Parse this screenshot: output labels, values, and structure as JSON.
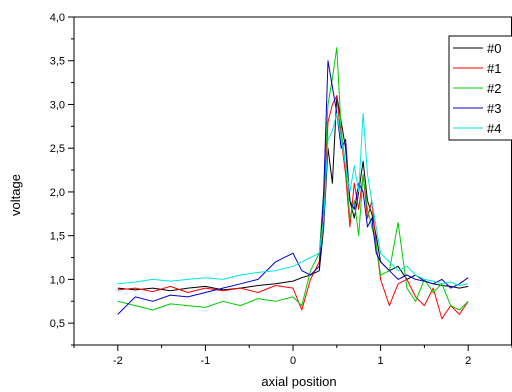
{
  "chart_data": {
    "type": "line",
    "xlabel": "axial position",
    "ylabel": "voltage",
    "xlim": [
      -2.5,
      2.5
    ],
    "ylim": [
      0.25,
      4.0
    ],
    "x_ticks": [
      -2,
      -1,
      0,
      1,
      2
    ],
    "x_tick_labels": [
      "-2",
      "-1",
      "0",
      "1",
      "2"
    ],
    "y_ticks": [
      0.5,
      1.0,
      1.5,
      2.0,
      2.5,
      3.0,
      3.5,
      4.0
    ],
    "y_tick_labels": [
      "0,5",
      "1,0",
      "1,5",
      "2,0",
      "2,5",
      "3,0",
      "3,5",
      "4,0"
    ],
    "legend_position": "top-right",
    "grid": false,
    "series": [
      {
        "name": "#0",
        "color": "#000000",
        "x": [
          -2.0,
          -1.8,
          -1.6,
          -1.4,
          -1.2,
          -1.0,
          -0.8,
          -0.6,
          -0.4,
          -0.2,
          0.0,
          0.1,
          0.2,
          0.3,
          0.35,
          0.4,
          0.45,
          0.5,
          0.55,
          0.6,
          0.65,
          0.7,
          0.75,
          0.8,
          0.85,
          0.9,
          0.95,
          1.0,
          1.1,
          1.2,
          1.3,
          1.4,
          1.5,
          1.6,
          1.7,
          1.8,
          1.9,
          2.0
        ],
        "y": [
          0.9,
          0.88,
          0.9,
          0.87,
          0.9,
          0.92,
          0.88,
          0.9,
          0.93,
          0.95,
          0.98,
          1.02,
          1.05,
          1.1,
          1.6,
          2.5,
          2.1,
          3.1,
          2.8,
          2.5,
          1.9,
          1.7,
          2.0,
          2.35,
          1.9,
          1.75,
          1.5,
          1.2,
          1.1,
          1.15,
          1.0,
          1.05,
          0.98,
          0.95,
          0.93,
          0.92,
          0.9,
          0.92
        ]
      },
      {
        "name": "#1",
        "color": "#ff0000",
        "x": [
          -2.0,
          -1.8,
          -1.6,
          -1.4,
          -1.2,
          -1.0,
          -0.8,
          -0.6,
          -0.4,
          -0.2,
          0.0,
          0.1,
          0.2,
          0.3,
          0.35,
          0.4,
          0.45,
          0.5,
          0.55,
          0.6,
          0.65,
          0.7,
          0.75,
          0.8,
          0.85,
          0.9,
          0.95,
          1.0,
          1.1,
          1.2,
          1.3,
          1.4,
          1.5,
          1.6,
          1.7,
          1.8,
          1.9,
          2.0
        ],
        "y": [
          0.88,
          0.9,
          0.86,
          0.92,
          0.85,
          0.9,
          0.87,
          0.9,
          0.85,
          0.93,
          0.9,
          0.65,
          1.0,
          1.2,
          1.8,
          2.8,
          3.0,
          3.1,
          2.6,
          2.2,
          1.6,
          2.1,
          1.8,
          2.2,
          1.7,
          1.9,
          1.4,
          1.0,
          0.7,
          0.95,
          1.0,
          0.8,
          0.7,
          0.9,
          0.55,
          0.7,
          0.6,
          0.75
        ]
      },
      {
        "name": "#2",
        "color": "#00cc00",
        "x": [
          -2.0,
          -1.8,
          -1.6,
          -1.4,
          -1.2,
          -1.0,
          -0.8,
          -0.6,
          -0.4,
          -0.2,
          0.0,
          0.1,
          0.2,
          0.3,
          0.35,
          0.4,
          0.45,
          0.5,
          0.55,
          0.6,
          0.65,
          0.7,
          0.75,
          0.8,
          0.85,
          0.9,
          0.95,
          1.0,
          1.1,
          1.2,
          1.3,
          1.4,
          1.5,
          1.6,
          1.7,
          1.8,
          1.9,
          2.0
        ],
        "y": [
          0.75,
          0.7,
          0.65,
          0.72,
          0.7,
          0.68,
          0.75,
          0.7,
          0.78,
          0.75,
          0.8,
          0.7,
          1.1,
          1.3,
          2.0,
          3.0,
          3.3,
          3.65,
          2.7,
          2.3,
          1.7,
          1.9,
          1.5,
          2.2,
          1.8,
          1.6,
          1.4,
          1.05,
          1.1,
          1.65,
          0.9,
          0.75,
          1.0,
          0.85,
          0.95,
          0.7,
          0.65,
          0.75
        ]
      },
      {
        "name": "#3",
        "color": "#0000cc",
        "x": [
          -2.0,
          -1.8,
          -1.6,
          -1.4,
          -1.2,
          -1.0,
          -0.8,
          -0.6,
          -0.4,
          -0.2,
          0.0,
          0.1,
          0.2,
          0.3,
          0.35,
          0.4,
          0.45,
          0.5,
          0.55,
          0.6,
          0.65,
          0.7,
          0.75,
          0.8,
          0.85,
          0.9,
          0.95,
          1.0,
          1.1,
          1.2,
          1.3,
          1.4,
          1.5,
          1.6,
          1.7,
          1.8,
          1.9,
          2.0
        ],
        "y": [
          0.6,
          0.8,
          0.75,
          0.82,
          0.8,
          0.85,
          0.9,
          0.95,
          1.0,
          1.2,
          1.3,
          1.1,
          1.05,
          1.15,
          2.0,
          3.5,
          3.2,
          2.9,
          2.5,
          2.6,
          1.9,
          1.8,
          2.1,
          2.0,
          1.6,
          1.7,
          1.3,
          1.2,
          1.1,
          1.0,
          1.05,
          1.0,
          0.98,
          0.95,
          1.0,
          0.9,
          0.95,
          1.02
        ]
      },
      {
        "name": "#4",
        "color": "#00e5e5",
        "x": [
          -2.0,
          -1.8,
          -1.6,
          -1.4,
          -1.2,
          -1.0,
          -0.8,
          -0.6,
          -0.4,
          -0.2,
          0.0,
          0.1,
          0.2,
          0.3,
          0.35,
          0.4,
          0.45,
          0.5,
          0.55,
          0.6,
          0.65,
          0.7,
          0.75,
          0.8,
          0.85,
          0.9,
          0.95,
          1.0,
          1.1,
          1.2,
          1.3,
          1.4,
          1.5,
          1.6,
          1.7,
          1.8,
          1.9,
          2.0
        ],
        "y": [
          0.95,
          0.97,
          1.0,
          0.98,
          1.0,
          1.02,
          1.0,
          1.05,
          1.08,
          1.1,
          1.15,
          1.2,
          1.25,
          1.3,
          1.7,
          2.6,
          2.7,
          2.9,
          2.6,
          2.3,
          2.0,
          2.3,
          2.0,
          2.9,
          2.2,
          1.9,
          1.6,
          1.3,
          1.2,
          1.1,
          1.15,
          1.05,
          1.0,
          0.98,
          0.95,
          0.97,
          0.93,
          0.95
        ]
      }
    ]
  }
}
